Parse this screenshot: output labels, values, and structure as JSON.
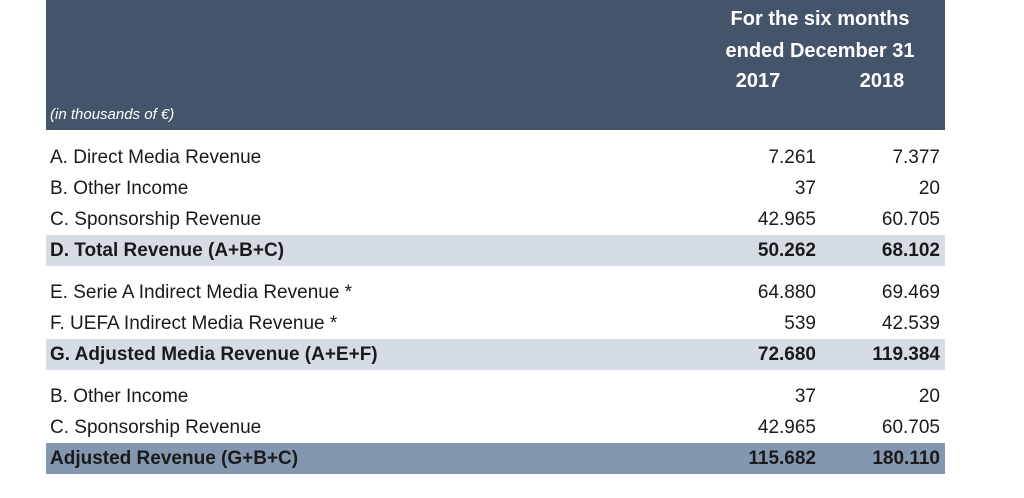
{
  "header": {
    "period": [
      "For the six months",
      "ended December 31"
    ],
    "years": [
      "2017",
      "2018"
    ],
    "unit": "(in thousands of €)"
  },
  "table": {
    "rows": [
      [
        "A. Direct Media Revenue",
        "7.261",
        "7.377"
      ],
      [
        "B. Other Income",
        "37",
        "20"
      ],
      [
        "C. Sponsorship Revenue",
        "42.965",
        "60.705"
      ],
      [
        "D. Total Revenue (A+B+C)",
        "50.262",
        "68.102"
      ],
      [
        "E. Serie A Indirect Media Revenue *",
        "64.880",
        "69.469"
      ],
      [
        "F. UEFA Indirect Media Revenue *",
        "539",
        "42.539"
      ],
      [
        "G. Adjusted Media Revenue  (A+E+F)",
        "72.680",
        "119.384"
      ],
      [
        "B. Other Income",
        "37",
        "20"
      ],
      [
        "C. Sponsorship Revenue",
        "42.965",
        "60.705"
      ],
      [
        "Adjusted Revenue (G+B+C)",
        "115.682",
        "180.110"
      ]
    ]
  }
}
